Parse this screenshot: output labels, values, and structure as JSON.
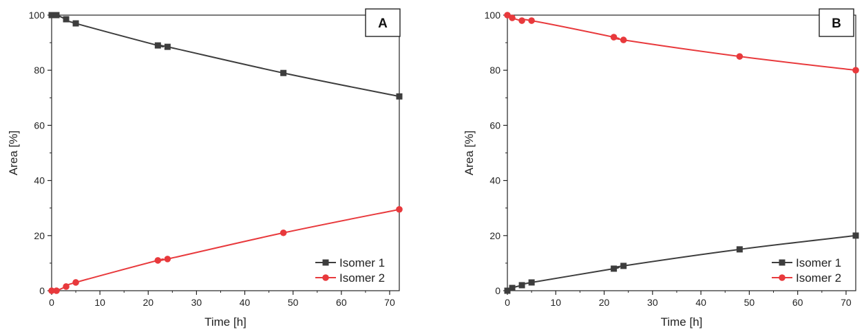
{
  "chart_data": [
    {
      "type": "line",
      "panel_label": "A",
      "xlabel": "Time [h]",
      "ylabel": "Area [%]",
      "xlim": [
        0,
        72
      ],
      "ylim": [
        0,
        100
      ],
      "xticks": [
        0,
        10,
        20,
        30,
        40,
        50,
        60,
        70
      ],
      "yticks": [
        0,
        20,
        40,
        60,
        80,
        100
      ],
      "grid": false,
      "legend_position": "bottom-right",
      "series": [
        {
          "name": "Isomer 1",
          "color": "#3d3d3d",
          "marker": "square",
          "x": [
            0,
            1,
            3,
            5,
            22,
            24,
            48,
            72
          ],
          "y": [
            100,
            100,
            98.5,
            97,
            89,
            88.5,
            79,
            70.5
          ]
        },
        {
          "name": "Isomer 2",
          "color": "#e8393c",
          "marker": "circle",
          "x": [
            0,
            1,
            3,
            5,
            22,
            24,
            48,
            72
          ],
          "y": [
            0,
            0,
            1.5,
            3,
            11,
            11.5,
            21,
            29.5
          ]
        }
      ]
    },
    {
      "type": "line",
      "panel_label": "B",
      "xlabel": "Time [h]",
      "ylabel": "Area [%]",
      "xlim": [
        0,
        72
      ],
      "ylim": [
        0,
        100
      ],
      "xticks": [
        0,
        10,
        20,
        30,
        40,
        50,
        60,
        70
      ],
      "yticks": [
        0,
        20,
        40,
        60,
        80,
        100
      ],
      "grid": false,
      "legend_position": "bottom-right",
      "series": [
        {
          "name": "Isomer 1",
          "color": "#3d3d3d",
          "marker": "square",
          "x": [
            0,
            1,
            3,
            5,
            22,
            24,
            48,
            72
          ],
          "y": [
            0,
            1,
            2,
            3,
            8,
            9,
            15,
            20
          ]
        },
        {
          "name": "Isomer 2",
          "color": "#e8393c",
          "marker": "circle",
          "x": [
            0,
            1,
            3,
            5,
            22,
            24,
            48,
            72
          ],
          "y": [
            100,
            99,
            98,
            98,
            92,
            91,
            85,
            80
          ]
        }
      ]
    }
  ]
}
